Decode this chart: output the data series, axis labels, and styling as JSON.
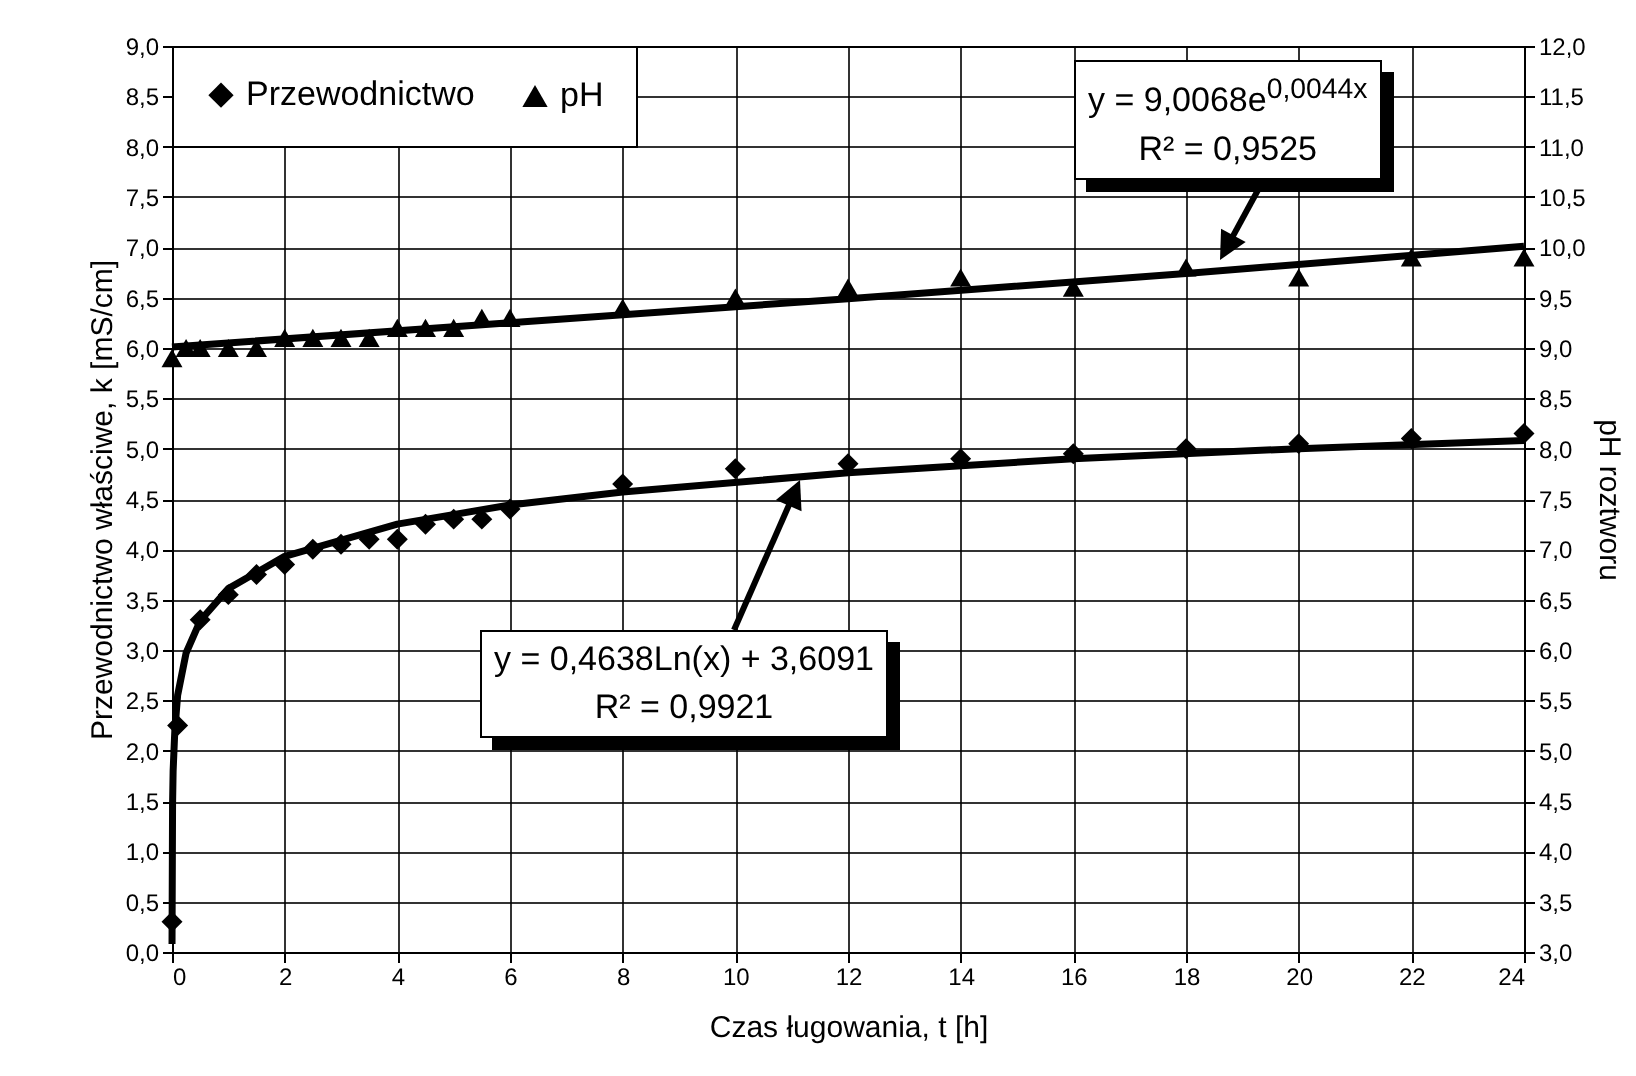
{
  "chart_data": {
    "type": "scatter",
    "xlabel": "Czas ługowania, t  [h]",
    "ylabel": "Przewodnictwo właściwe, k [mS/cm]",
    "y2label": "pH roztworu",
    "xlim": [
      0,
      24
    ],
    "xticks": [
      0,
      2,
      4,
      6,
      8,
      10,
      12,
      14,
      16,
      18,
      20,
      22,
      24
    ],
    "ylim": [
      0,
      9
    ],
    "yticks": [
      {
        "value": 0,
        "label": "0,0"
      },
      {
        "value": 0.5,
        "label": "0,5"
      },
      {
        "value": 1,
        "label": "1,0"
      },
      {
        "value": 1.5,
        "label": "1,5"
      },
      {
        "value": 2,
        "label": "2,0"
      },
      {
        "value": 2.5,
        "label": "2,5"
      },
      {
        "value": 3,
        "label": "3,0"
      },
      {
        "value": 3.5,
        "label": "3,5"
      },
      {
        "value": 4,
        "label": "4,0"
      },
      {
        "value": 4.5,
        "label": "4,5"
      },
      {
        "value": 5,
        "label": "5,0"
      },
      {
        "value": 5.5,
        "label": "5,5"
      },
      {
        "value": 6,
        "label": "6,0"
      },
      {
        "value": 6.5,
        "label": "6,5"
      },
      {
        "value": 7,
        "label": "7,0"
      },
      {
        "value": 7.5,
        "label": "7,5"
      },
      {
        "value": 8,
        "label": "8,0"
      },
      {
        "value": 8.5,
        "label": "8,5"
      },
      {
        "value": 9,
        "label": "9,0"
      }
    ],
    "y2lim": [
      3,
      12
    ],
    "y2ticks": [
      {
        "value": 3,
        "label": "3,0"
      },
      {
        "value": 3.5,
        "label": "3,5"
      },
      {
        "value": 4,
        "label": "4,0"
      },
      {
        "value": 4.5,
        "label": "4,5"
      },
      {
        "value": 5,
        "label": "5,0"
      },
      {
        "value": 5.5,
        "label": "5,5"
      },
      {
        "value": 6,
        "label": "6,0"
      },
      {
        "value": 6.5,
        "label": "6,5"
      },
      {
        "value": 7,
        "label": "7,0"
      },
      {
        "value": 7.5,
        "label": "7,5"
      },
      {
        "value": 8,
        "label": "8,0"
      },
      {
        "value": 8.5,
        "label": "8,5"
      },
      {
        "value": 9,
        "label": "9,0"
      },
      {
        "value": 9.5,
        "label": "9,5"
      },
      {
        "value": 10,
        "label": "10,0"
      },
      {
        "value": 10.5,
        "label": "10,5"
      },
      {
        "value": 11,
        "label": "11,0"
      },
      {
        "value": 11.5,
        "label": "11,5"
      },
      {
        "value": 12,
        "label": "12,0"
      }
    ],
    "grid": true,
    "legend": "top left",
    "annotations": [
      "y = 0,4638Ln(x) + 3,6091\nR² = 0,9921",
      "y = 9,0068e$^{0,0044x}$\nR² = 0,9525"
    ],
    "series": [
      {
        "name": "Przewodnictwo",
        "marker": "diamond",
        "color": "#000000",
        "x": [
          0,
          0.1,
          0.5,
          1,
          1.5,
          2,
          2.5,
          3,
          3.5,
          4,
          4.5,
          5,
          5.5,
          6,
          8,
          10,
          12,
          14,
          16,
          18,
          20,
          22,
          24
        ],
        "values": [
          0.3,
          2.25,
          3.3,
          3.55,
          3.75,
          3.85,
          4.0,
          4.05,
          4.1,
          4.1,
          4.25,
          4.3,
          4.3,
          4.4,
          4.65,
          4.8,
          4.85,
          4.9,
          4.95,
          5.0,
          5.05,
          5.1,
          5.15
        ]
      },
      {
        "name": "pH",
        "marker": "triangle",
        "axis": "y2",
        "color": "#000000",
        "x": [
          0,
          0.25,
          0.5,
          1,
          1.5,
          2,
          2.5,
          3,
          3.5,
          4,
          4.5,
          5,
          5.5,
          6,
          8,
          10,
          12,
          14,
          16,
          18,
          20,
          22,
          24
        ],
        "values": [
          8.9,
          9.0,
          9.0,
          9.0,
          9.0,
          9.1,
          9.1,
          9.1,
          9.1,
          9.2,
          9.2,
          9.2,
          9.3,
          9.3,
          9.4,
          9.5,
          9.6,
          9.7,
          9.6,
          9.8,
          9.7,
          9.9,
          9.9
        ]
      },
      {
        "type": "line",
        "color": "#000000",
        "x": [
          0.0005,
          0.01,
          0.02,
          0.05,
          0.1,
          0.25,
          0.5,
          1,
          2,
          4,
          6,
          8,
          12,
          16,
          20,
          24
        ],
        "values": [
          0.08,
          1.47,
          1.8,
          2.2,
          2.55,
          2.97,
          3.29,
          3.61,
          3.93,
          4.25,
          4.44,
          4.57,
          4.76,
          4.9,
          5.0,
          5.08
        ]
      },
      {
        "type": "line",
        "axis": "y2",
        "color": "#000000",
        "x": [
          0,
          6,
          12,
          18,
          24
        ],
        "values": [
          9.01,
          9.25,
          9.49,
          9.74,
          10.01
        ]
      }
    ]
  }
}
